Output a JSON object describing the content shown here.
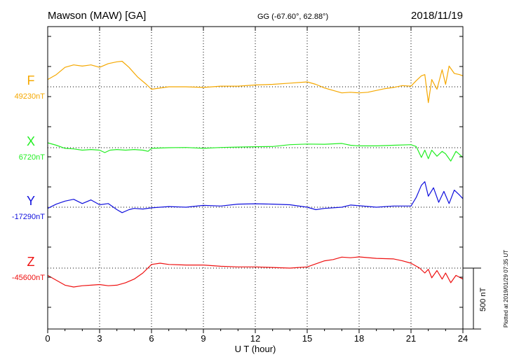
{
  "header": {
    "station": "Mawson (MAW)  [GA]",
    "coords": "GG (-67.60°,  62.88°)",
    "date": "2018/11/19"
  },
  "side_note": "Plotted at 2019/01/29 07:35 UT",
  "scale_bar_label": "500 nT",
  "chart_data": {
    "type": "line",
    "title": "Mawson (MAW)  [GA]",
    "xlabel": "U T (hour)",
    "ylabel": "",
    "xlim": [
      0,
      24
    ],
    "x_ticks": [
      "0",
      "3",
      "6",
      "9",
      "12",
      "15",
      "18",
      "21",
      "24"
    ],
    "grid": true,
    "scale_bar_nT": 500,
    "series": [
      {
        "name": "F",
        "baseline_label": "49230nT",
        "baseline": 49230,
        "color": "#f5a800",
        "x": [
          0,
          0.5,
          1,
          1.5,
          2,
          2.5,
          3,
          3.5,
          4,
          4.3,
          4.7,
          5.2,
          5.7,
          6,
          7,
          8,
          9,
          10,
          11,
          12,
          13,
          14,
          15,
          15.5,
          16,
          16.5,
          17,
          17.5,
          18,
          18.5,
          19,
          19.5,
          20,
          20.5,
          21,
          21.3,
          21.6,
          21.8,
          22,
          22.2,
          22.5,
          22.8,
          23,
          23.2,
          23.5,
          23.8,
          24
        ],
        "y": [
          49290,
          49330,
          49390,
          49410,
          49400,
          49410,
          49390,
          49420,
          49435,
          49440,
          49390,
          49310,
          49250,
          49210,
          49230,
          49230,
          49225,
          49235,
          49235,
          49245,
          49250,
          49260,
          49270,
          49250,
          49220,
          49200,
          49180,
          49185,
          49180,
          49185,
          49200,
          49215,
          49225,
          49240,
          49235,
          49280,
          49320,
          49330,
          49100,
          49290,
          49210,
          49370,
          49250,
          49400,
          49340,
          49330,
          49320
        ]
      },
      {
        "name": "X",
        "baseline_label": "6720nT",
        "baseline": 6720,
        "color": "#22ee22",
        "x": [
          0,
          0.5,
          1,
          1.5,
          2,
          2.5,
          3,
          3.3,
          3.6,
          4,
          4.5,
          5,
          5.5,
          5.8,
          6,
          7,
          8,
          9,
          10,
          11,
          12,
          13,
          14,
          15,
          16,
          17,
          17.5,
          18,
          19,
          20,
          21,
          21.3,
          21.6,
          21.8,
          22,
          22.2,
          22.5,
          22.8,
          23,
          23.3,
          23.6,
          24
        ],
        "y": [
          6760,
          6740,
          6715,
          6710,
          6700,
          6705,
          6700,
          6680,
          6700,
          6705,
          6700,
          6705,
          6700,
          6690,
          6715,
          6720,
          6722,
          6715,
          6722,
          6725,
          6728,
          6730,
          6745,
          6750,
          6748,
          6755,
          6740,
          6735,
          6735,
          6740,
          6745,
          6730,
          6640,
          6700,
          6630,
          6700,
          6650,
          6690,
          6670,
          6610,
          6690,
          6640
        ]
      },
      {
        "name": "Y",
        "baseline_label": "-17290nT",
        "baseline": -17290,
        "color": "#1010dd",
        "x": [
          0,
          0.5,
          1,
          1.5,
          2,
          2.5,
          3,
          3.5,
          4,
          4.3,
          4.7,
          5,
          5.5,
          6,
          7,
          8,
          9,
          10,
          11,
          12,
          13,
          14,
          15,
          15.5,
          16,
          17,
          17.5,
          18,
          19,
          20,
          21,
          21.3,
          21.6,
          21.8,
          22,
          22.3,
          22.6,
          22.9,
          23.2,
          23.5,
          23.8,
          24
        ],
        "y": [
          -17300,
          -17265,
          -17240,
          -17225,
          -17260,
          -17230,
          -17270,
          -17260,
          -17310,
          -17335,
          -17310,
          -17300,
          -17305,
          -17295,
          -17285,
          -17290,
          -17275,
          -17280,
          -17265,
          -17262,
          -17265,
          -17270,
          -17290,
          -17310,
          -17300,
          -17290,
          -17272,
          -17278,
          -17290,
          -17280,
          -17280,
          -17210,
          -17110,
          -17080,
          -17200,
          -17130,
          -17250,
          -17160,
          -17260,
          -17150,
          -17190,
          -17220
        ]
      },
      {
        "name": "Z",
        "baseline_label": "-45600nT",
        "baseline": -45600,
        "color": "#ee1010",
        "x": [
          0,
          0.5,
          1,
          1.5,
          2,
          2.5,
          3,
          3.5,
          4,
          4.5,
          5,
          5.5,
          6,
          6.5,
          7,
          8,
          9,
          10,
          11,
          12,
          13,
          14,
          15,
          15.5,
          16,
          16.5,
          17,
          17.5,
          18,
          19,
          20,
          20.5,
          21,
          21.5,
          21.8,
          22,
          22.2,
          22.5,
          22.8,
          23,
          23.3,
          23.6,
          24
        ],
        "y": [
          -45660,
          -45700,
          -45740,
          -45755,
          -45745,
          -45740,
          -45735,
          -45745,
          -45740,
          -45720,
          -45690,
          -45640,
          -45570,
          -45560,
          -45570,
          -45575,
          -45575,
          -45585,
          -45590,
          -45590,
          -45595,
          -45600,
          -45590,
          -45565,
          -45540,
          -45530,
          -45510,
          -45515,
          -45508,
          -45520,
          -45525,
          -45540,
          -45560,
          -45600,
          -45640,
          -45610,
          -45680,
          -45620,
          -45690,
          -45640,
          -45720,
          -45660,
          -45690
        ]
      }
    ]
  }
}
